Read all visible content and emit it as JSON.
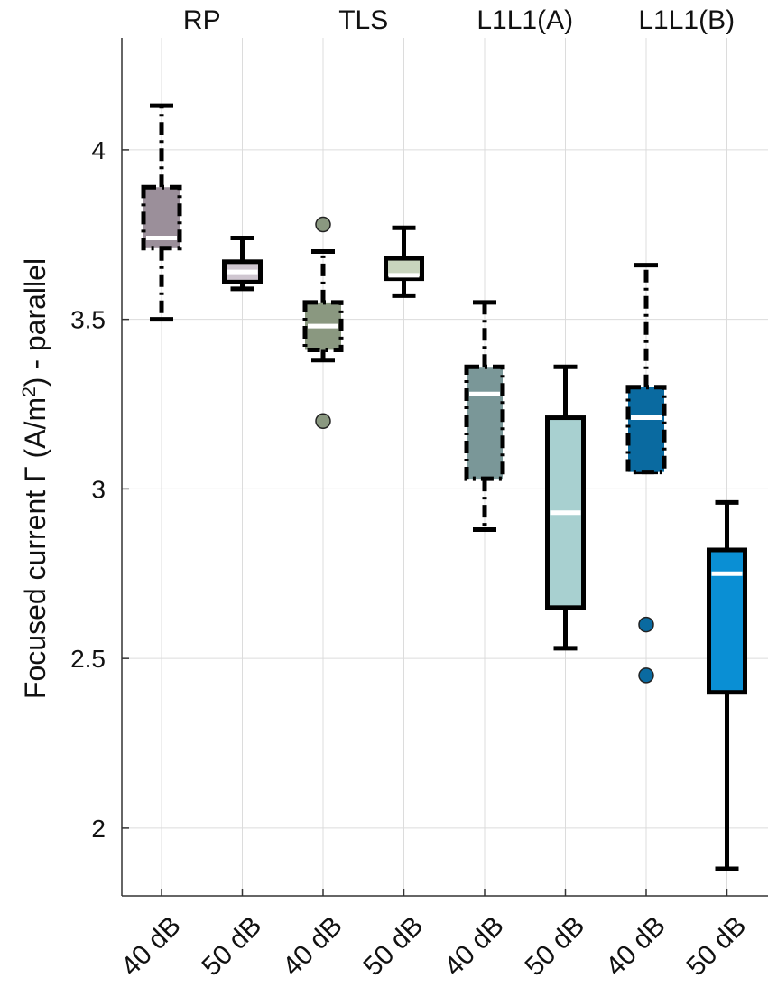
{
  "chart_data": {
    "type": "boxplot",
    "title": "",
    "xlabel": "",
    "ylabel_main": "Focused current Γ (A/m",
    "ylabel_sup": "2",
    "ylabel_tail": ") - parallel",
    "ylim": [
      1.8,
      4.33
    ],
    "y_ticks": [
      2,
      2.5,
      3,
      3.5,
      4
    ],
    "y_tick_labels": [
      "2",
      "2.5",
      "3",
      "3.5",
      "4"
    ],
    "grid": true,
    "groups": [
      "RP",
      "TLS",
      "L1L1(A)",
      "L1L1(B)"
    ],
    "categories": [
      "40 dB",
      "50 dB",
      "40 dB",
      "50 dB",
      "40 dB",
      "50 dB",
      "40 dB",
      "50 dB"
    ],
    "series": [
      {
        "name": "RP 40 dB",
        "group": "RP",
        "condition": "40 dB",
        "color": "#9b8f9a",
        "median_color": "#ffffff",
        "dashed": true,
        "whisker_low": 3.5,
        "q1": 3.71,
        "median": 3.74,
        "q3": 3.89,
        "whisker_high": 4.13,
        "outliers": []
      },
      {
        "name": "RP 50 dB",
        "group": "RP",
        "condition": "50 dB",
        "color": "#cfc6d0",
        "median_color": "#ffffff",
        "dashed": false,
        "whisker_low": 3.59,
        "q1": 3.61,
        "median": 3.64,
        "q3": 3.67,
        "whisker_high": 3.74,
        "outliers": []
      },
      {
        "name": "TLS 40 dB",
        "group": "TLS",
        "condition": "40 dB",
        "color": "#8a9880",
        "median_color": "#ffffff",
        "dashed": true,
        "whisker_low": 3.38,
        "q1": 3.41,
        "median": 3.48,
        "q3": 3.55,
        "whisker_high": 3.7,
        "outliers": [
          3.78,
          3.2
        ]
      },
      {
        "name": "TLS 50 dB",
        "group": "TLS",
        "condition": "50 dB",
        "color": "#c8d4bd",
        "median_color": "#ffffff",
        "dashed": false,
        "whisker_low": 3.57,
        "q1": 3.62,
        "median": 3.63,
        "q3": 3.68,
        "whisker_high": 3.77,
        "outliers": []
      },
      {
        "name": "L1L1(A) 40 dB",
        "group": "L1L1(A)",
        "condition": "40 dB",
        "color": "#7a9798",
        "median_color": "#ffffff",
        "dashed": true,
        "whisker_low": 2.88,
        "q1": 3.03,
        "median": 3.28,
        "q3": 3.36,
        "whisker_high": 3.55,
        "outliers": []
      },
      {
        "name": "L1L1(A) 50 dB",
        "group": "L1L1(A)",
        "condition": "50 dB",
        "color": "#a8d0d0",
        "median_color": "#ffffff",
        "dashed": false,
        "whisker_low": 2.53,
        "q1": 2.65,
        "median": 2.93,
        "q3": 3.21,
        "whisker_high": 3.36,
        "outliers": []
      },
      {
        "name": "L1L1(B) 40 dB",
        "group": "L1L1(B)",
        "condition": "40 dB",
        "color": "#0a6aa0",
        "median_color": "#ffffff",
        "dashed": true,
        "whisker_low": 3.05,
        "q1": 3.05,
        "median": 3.21,
        "q3": 3.3,
        "whisker_high": 3.66,
        "outliers": [
          2.6,
          2.45
        ]
      },
      {
        "name": "L1L1(B) 50 dB",
        "group": "L1L1(B)",
        "condition": "50 dB",
        "color": "#0a8fd4",
        "median_color": "#ffffff",
        "dashed": false,
        "whisker_low": 1.88,
        "q1": 2.4,
        "median": 2.75,
        "q3": 2.82,
        "whisker_high": 2.96,
        "outliers": []
      }
    ]
  }
}
